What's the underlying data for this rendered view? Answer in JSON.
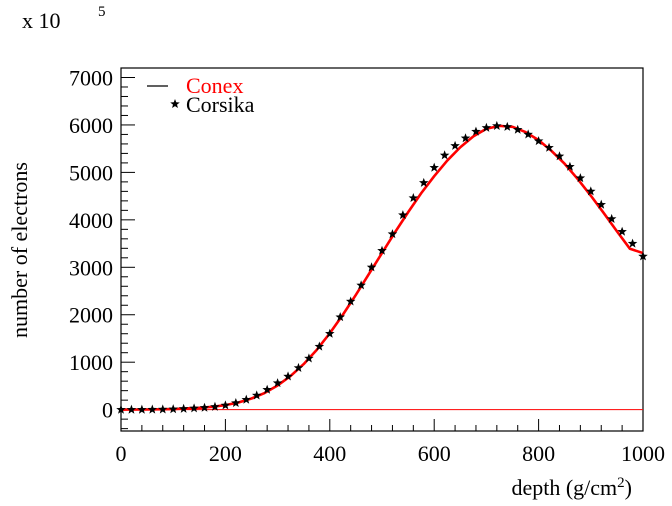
{
  "chart_data": {
    "type": "line",
    "title": "",
    "xlabel": "depth (g/cm",
    "xlabel_sup": "2",
    "xlabel_close": ")",
    "ylabel": "number of electrons",
    "y_multiplier": "x 10",
    "y_multiplier_exp": "5",
    "xlim": [
      0,
      1000
    ],
    "ylim": [
      -450,
      7200
    ],
    "x_ticks": [
      0,
      200,
      400,
      600,
      800,
      1000
    ],
    "y_ticks": [
      0,
      1000,
      2000,
      3000,
      4000,
      5000,
      6000,
      7000
    ],
    "x_tick_labels": [
      "0",
      "200",
      "400",
      "600",
      "800",
      "1000"
    ],
    "y_tick_labels": [
      "0",
      "1000",
      "2000",
      "3000",
      "4000",
      "5000",
      "6000",
      "7000"
    ],
    "grid": false,
    "legend_position": "top-left",
    "series": [
      {
        "name": "Conex",
        "style": "line",
        "color": "#ff0000",
        "x": [
          0,
          50,
          100,
          150,
          175,
          200,
          225,
          250,
          275,
          300,
          325,
          350,
          375,
          400,
          425,
          450,
          475,
          500,
          525,
          550,
          575,
          600,
          625,
          650,
          675,
          700,
          725,
          750,
          775,
          800,
          825,
          850,
          875,
          900,
          925,
          950,
          975,
          1000
        ],
        "values": [
          0,
          3,
          12,
          38,
          60,
          95,
          150,
          235,
          350,
          510,
          710,
          960,
          1260,
          1610,
          2000,
          2420,
          2860,
          3300,
          3740,
          4160,
          4560,
          4920,
          5250,
          5530,
          5760,
          5920,
          5980,
          5960,
          5850,
          5680,
          5450,
          5180,
          4860,
          4510,
          4140,
          3760,
          3390,
          3300
        ]
      },
      {
        "name": "Corsika",
        "style": "markers",
        "marker": "star",
        "color": "#000000",
        "x": [
          0,
          20,
          40,
          60,
          80,
          100,
          120,
          140,
          160,
          180,
          200,
          220,
          240,
          260,
          280,
          300,
          320,
          340,
          360,
          380,
          400,
          420,
          440,
          460,
          480,
          500,
          520,
          540,
          560,
          580,
          600,
          620,
          640,
          660,
          680,
          700,
          720,
          740,
          760,
          780,
          800,
          820,
          840,
          860,
          880,
          900,
          920,
          940,
          960,
          980,
          1000
        ],
        "values": [
          0,
          0,
          0,
          2,
          5,
          10,
          18,
          28,
          40,
          60,
          90,
          140,
          210,
          300,
          420,
          560,
          700,
          880,
          1080,
          1330,
          1600,
          1950,
          2280,
          2620,
          3000,
          3350,
          3700,
          4100,
          4460,
          4780,
          5100,
          5360,
          5560,
          5720,
          5860,
          5940,
          5980,
          5960,
          5900,
          5800,
          5660,
          5520,
          5340,
          5120,
          4880,
          4600,
          4320,
          4020,
          3750,
          3500,
          3230
        ]
      }
    ],
    "reference_line": {
      "y": 0,
      "color": "#ff0000"
    }
  }
}
